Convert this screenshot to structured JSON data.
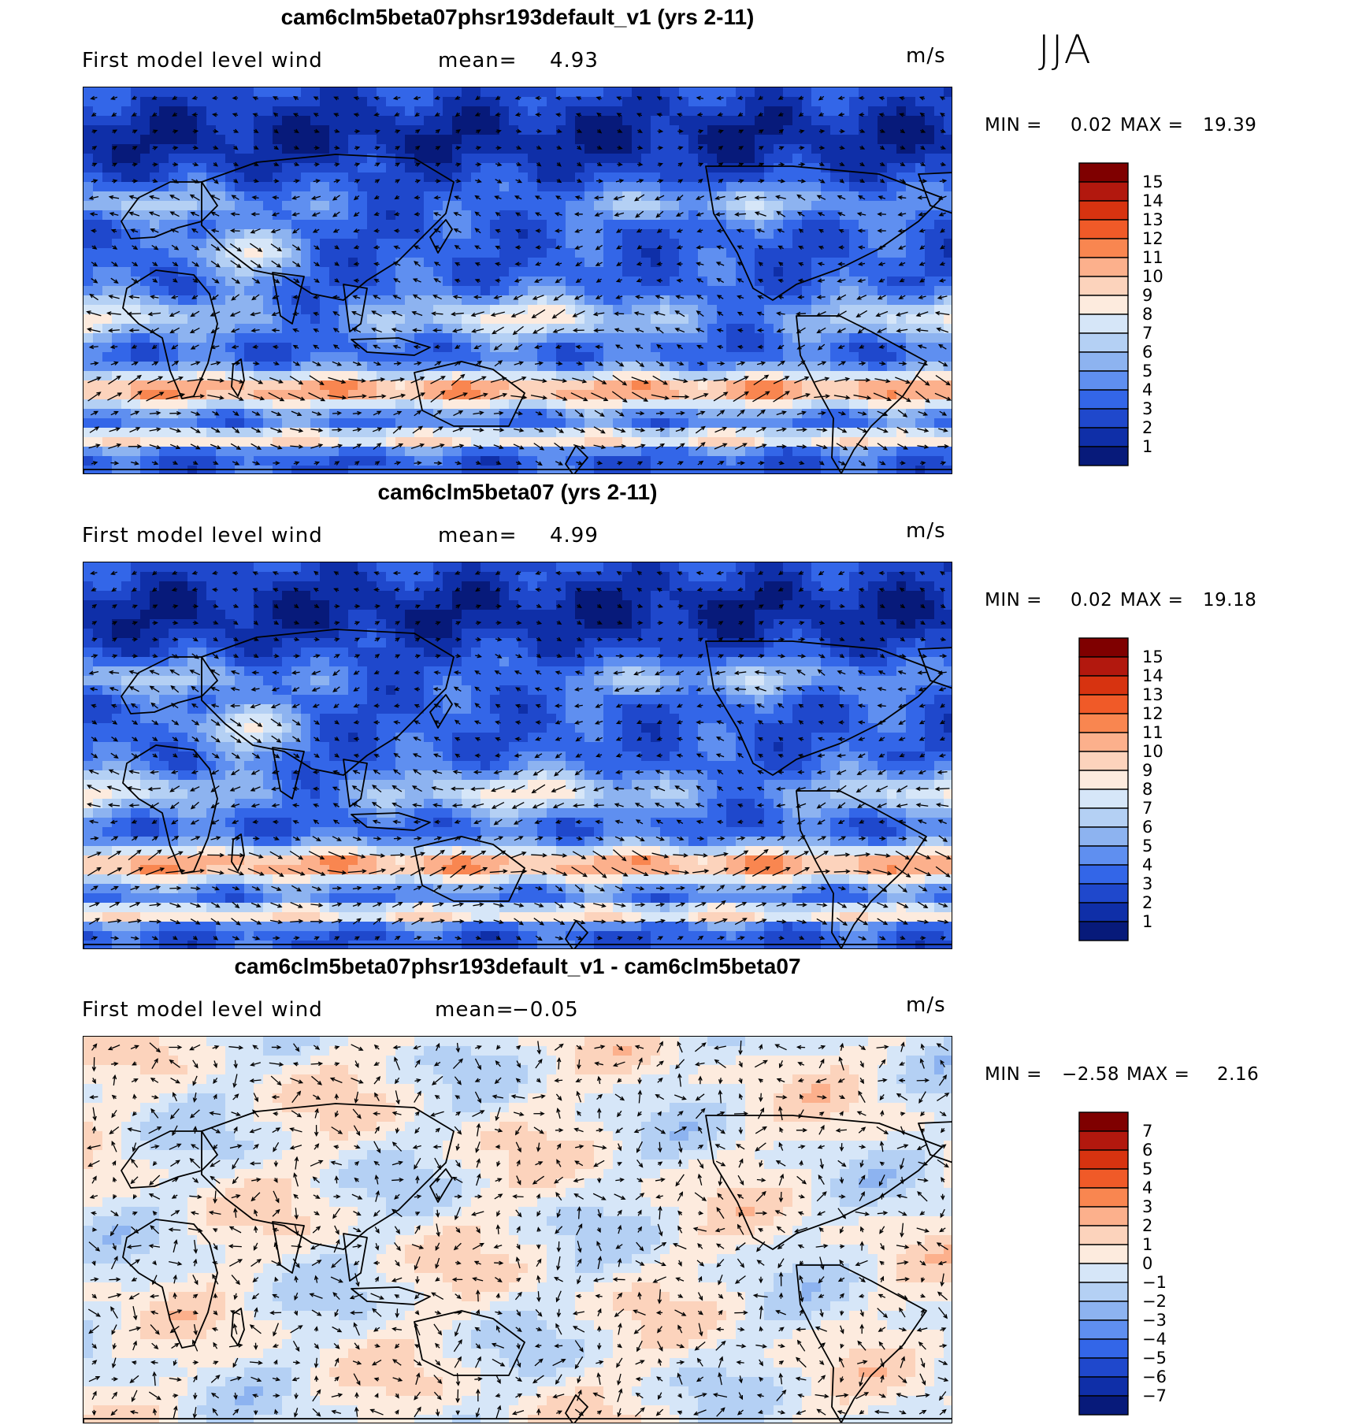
{
  "season": "JJA",
  "panels": [
    {
      "title": "cam6clm5beta07phsr193default_v1 (yrs 2-11)",
      "variable": "First model level wind",
      "mean_label": "mean=",
      "mean_value": "4.93",
      "units": "m/s",
      "min_label": "MIN =",
      "min_value": "0.02",
      "max_label": "MAX =",
      "max_value": "19.39"
    },
    {
      "title": "cam6clm5beta07 (yrs 2-11)",
      "variable": "First model level wind",
      "mean_label": "mean=",
      "mean_value": "4.99",
      "units": "m/s",
      "min_label": "MIN =",
      "min_value": "0.02",
      "max_label": "MAX =",
      "max_value": "19.18"
    },
    {
      "title": "cam6clm5beta07phsr193default_v1 - cam6clm5beta07",
      "variable": "First model level wind",
      "mean_label": "mean=",
      "mean_value": "−0.05",
      "units": "m/s",
      "min_label": "MIN =",
      "min_value": "−2.58",
      "max_label": "MAX =",
      "max_value": "2.16"
    }
  ],
  "chart_data": [
    {
      "type": "heatmap",
      "title": "cam6clm5beta07phsr193default_v1 (yrs 2-11)",
      "variable": "First model level wind",
      "units": "m/s",
      "mean": 4.93,
      "min": 0.02,
      "max": 19.39,
      "colorbar_levels": [
        "15",
        "14",
        "13",
        "12",
        "11",
        "10",
        "9",
        "8",
        "7",
        "6",
        "5",
        "4",
        "3",
        "2",
        "1"
      ],
      "colorbar_colors": [
        "#7f0000",
        "#b2180e",
        "#d73310",
        "#f05a28",
        "#f98650",
        "#fcb08c",
        "#fcd3bc",
        "#fdebde",
        "#d6e6f8",
        "#b4d0f4",
        "#8db3f0",
        "#5f8ff0",
        "#3366e8",
        "#1f48cc",
        "#0f2fa8",
        "#071a7a"
      ],
      "arrow_scale": 1.0
    },
    {
      "type": "heatmap",
      "title": "cam6clm5beta07 (yrs 2-11)",
      "variable": "First model level wind",
      "units": "m/s",
      "mean": 4.99,
      "min": 0.02,
      "max": 19.18,
      "colorbar_levels": [
        "15",
        "14",
        "13",
        "12",
        "11",
        "10",
        "9",
        "8",
        "7",
        "6",
        "5",
        "4",
        "3",
        "2",
        "1"
      ],
      "colorbar_colors": [
        "#7f0000",
        "#b2180e",
        "#d73310",
        "#f05a28",
        "#f98650",
        "#fcb08c",
        "#fcd3bc",
        "#fdebde",
        "#d6e6f8",
        "#b4d0f4",
        "#8db3f0",
        "#5f8ff0",
        "#3366e8",
        "#1f48cc",
        "#0f2fa8",
        "#071a7a"
      ],
      "arrow_scale": 1.0
    },
    {
      "type": "heatmap",
      "title": "cam6clm5beta07phsr193default_v1 - cam6clm5beta07",
      "variable": "First model level wind",
      "units": "m/s",
      "mean": -0.05,
      "min": -2.58,
      "max": 2.16,
      "colorbar_levels": [
        "7",
        "6",
        "5",
        "4",
        "3",
        "2",
        "1",
        "0",
        "−1",
        "−2",
        "−3",
        "−4",
        "−5",
        "−6",
        "−7"
      ],
      "colorbar_colors": [
        "#7f0000",
        "#b2180e",
        "#d73310",
        "#f05a28",
        "#f98650",
        "#fcb08c",
        "#fcd3bc",
        "#fdebde",
        "#d6e6f8",
        "#b4d0f4",
        "#8db3f0",
        "#5f8ff0",
        "#3366e8",
        "#1f48cc",
        "#0f2fa8",
        "#071a7a"
      ],
      "arrow_scale": 0.8
    }
  ]
}
